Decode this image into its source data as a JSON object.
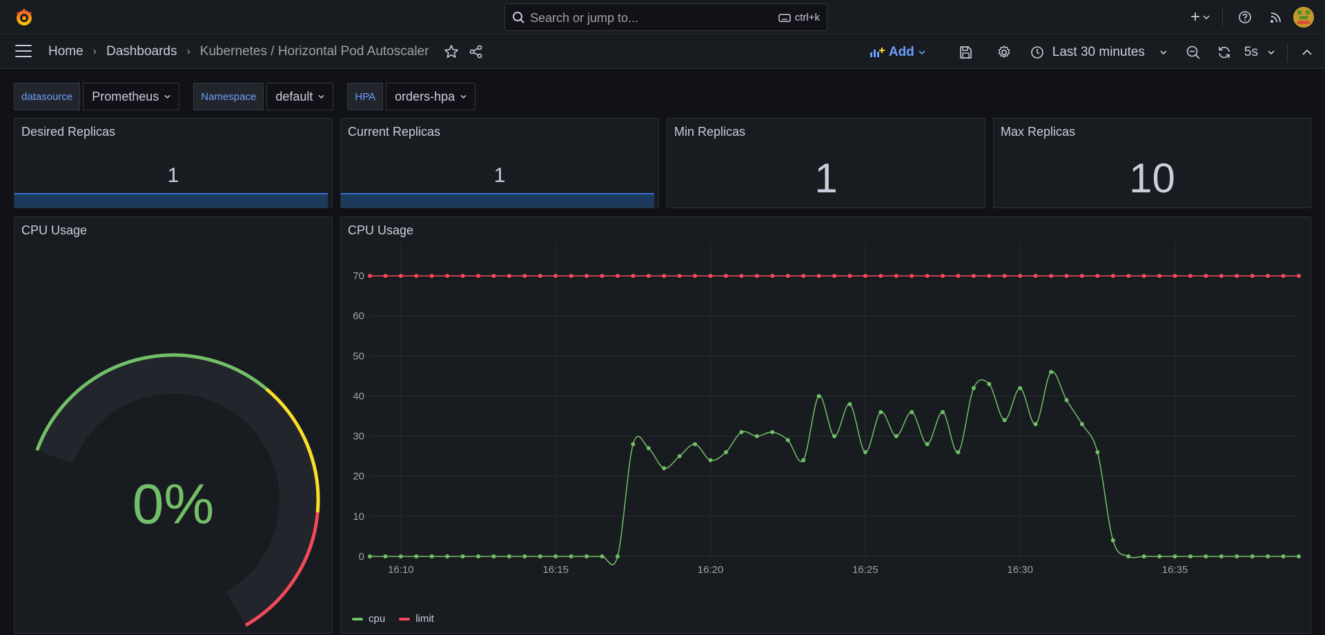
{
  "topbar": {
    "search_placeholder": "Search or jump to...",
    "search_shortcut": "ctrl+k"
  },
  "navbar": {
    "breadcrumbs": [
      "Home",
      "Dashboards",
      "Kubernetes / Horizontal Pod Autoscaler"
    ],
    "add_label": "Add",
    "time_range": "Last 30 minutes",
    "refresh_interval": "5s"
  },
  "variables": [
    {
      "label": "datasource",
      "value": "Prometheus"
    },
    {
      "label": "Namespace",
      "value": "default"
    },
    {
      "label": "HPA",
      "value": "orders-hpa"
    }
  ],
  "stats": [
    {
      "title": "Desired Replicas",
      "value": "1",
      "sparkline": true
    },
    {
      "title": "Current Replicas",
      "value": "1",
      "sparkline": true
    },
    {
      "title": "Min Replicas",
      "value": "1",
      "sparkline": false
    },
    {
      "title": "Max Replicas",
      "value": "10",
      "sparkline": false
    }
  ],
  "gauge": {
    "title": "CPU Usage",
    "value": "0%",
    "value_number": 0,
    "colors": {
      "green": "#73bf69",
      "yellow": "#fade2a",
      "red": "#f2495c"
    }
  },
  "chart_data": {
    "type": "line",
    "title": "CPU Usage",
    "ylim": [
      0,
      75
    ],
    "yticks": [
      0,
      10,
      20,
      30,
      40,
      50,
      60,
      70
    ],
    "xticks": [
      "16:10",
      "16:15",
      "16:20",
      "16:25",
      "16:30",
      "16:35"
    ],
    "x_start": "16:09:00",
    "x_step_seconds": 30,
    "series": [
      {
        "name": "cpu",
        "color": "#73bf69",
        "values": [
          0,
          0,
          0,
          0,
          0,
          0,
          0,
          0,
          0,
          0,
          0,
          0,
          0,
          0,
          0,
          0,
          0,
          28,
          27,
          22,
          25,
          28,
          24,
          26,
          31,
          30,
          31,
          29,
          24,
          40,
          30,
          38,
          26,
          36,
          30,
          36,
          28,
          36,
          26,
          42,
          43,
          34,
          42,
          33,
          46,
          39,
          33,
          26,
          4,
          0,
          0,
          0,
          0,
          0,
          0,
          0,
          0,
          0,
          0,
          0,
          0
        ]
      },
      {
        "name": "limit",
        "color": "#f2495c",
        "values": [
          70,
          70,
          70,
          70,
          70,
          70,
          70,
          70,
          70,
          70,
          70,
          70,
          70,
          70,
          70,
          70,
          70,
          70,
          70,
          70,
          70,
          70,
          70,
          70,
          70,
          70,
          70,
          70,
          70,
          70,
          70,
          70,
          70,
          70,
          70,
          70,
          70,
          70,
          70,
          70,
          70,
          70,
          70,
          70,
          70,
          70,
          70,
          70,
          70,
          70,
          70,
          70,
          70,
          70,
          70,
          70,
          70,
          70,
          70,
          70,
          70
        ]
      }
    ],
    "legend": "bottom-left",
    "grid": true
  }
}
